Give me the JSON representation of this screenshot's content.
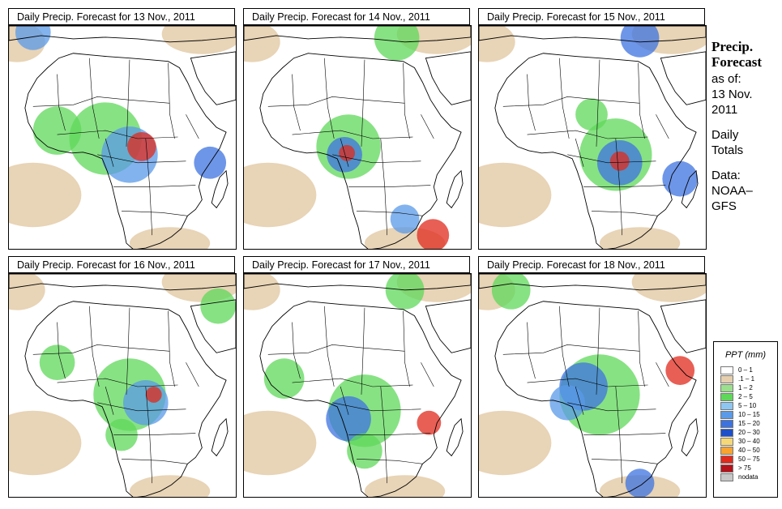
{
  "panels": [
    {
      "title": "Daily Precip. Forecast for  13 Nov., 2011"
    },
    {
      "title": "Daily Precip. Forecast for  14 Nov., 2011"
    },
    {
      "title": "Daily Precip. Forecast for  15 Nov., 2011"
    },
    {
      "title": "Daily Precip. Forecast for  16 Nov., 2011"
    },
    {
      "title": "Daily Precip. Forecast for  17 Nov., 2011"
    },
    {
      "title": "Daily Precip. Forecast for  18 Nov., 2011"
    }
  ],
  "side": {
    "heading1": "Precip.",
    "heading2": "Forecast",
    "asof_label": "as of:",
    "asof_date1": "13 Nov.",
    "asof_date2": "2011",
    "type1": "Daily",
    "type2": "Totals",
    "data1": "Data:",
    "data2": "NOAA–",
    "data3": "GFS"
  },
  "legend": {
    "title": "PPT (mm)",
    "items": [
      {
        "label": "0 – 1",
        "color": "#ffffff"
      },
      {
        "label": ".1 – 1",
        "color": "#e5cfae"
      },
      {
        "label": "1 – 2",
        "color": "#9be08c"
      },
      {
        "label": "2 – 5",
        "color": "#5fd85a"
      },
      {
        "label": "5 – 10",
        "color": "#8ec6f2"
      },
      {
        "label": "10 – 15",
        "color": "#5a9ae8"
      },
      {
        "label": "15 – 20",
        "color": "#3d73e0"
      },
      {
        "label": "20 – 30",
        "color": "#1d4fc8"
      },
      {
        "label": "30 – 40",
        "color": "#f5d878"
      },
      {
        "label": "40 – 50",
        "color": "#f7a431"
      },
      {
        "label": "50 – 75",
        "color": "#e02a1c"
      },
      {
        "label": "> 75",
        "color": "#b5121b"
      },
      {
        "label": "nodata",
        "color": "#c8c8c8"
      }
    ]
  }
}
